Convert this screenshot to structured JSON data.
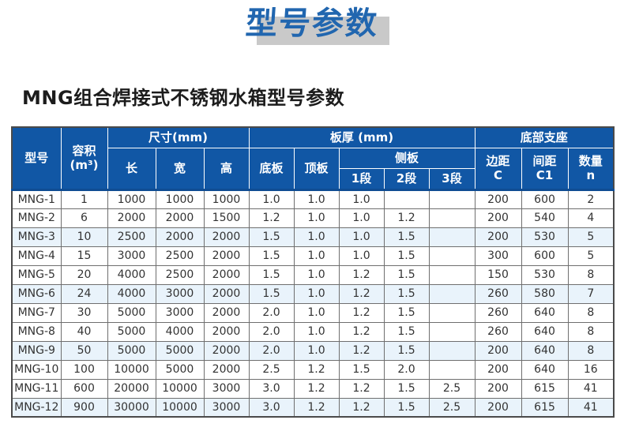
{
  "page": {
    "title": "型号参数",
    "subtitle": "MNG组合焊接式不锈钢水箱型号参数"
  },
  "colors": {
    "title_blue": "#2166af",
    "title_shadow_gray": "#c9c9c9",
    "header_bg_blue": "#1157a5",
    "header_text": "#ffffff",
    "row_tint_blue": "#e9f3fb",
    "grid_line": "#6f6f6f",
    "body_text": "#333333"
  },
  "table": {
    "header": {
      "model": "型号",
      "volume_line1": "容积",
      "volume_line2": "(m³)",
      "size_group": "尺寸(mm)",
      "length": "长",
      "width": "宽",
      "height": "高",
      "thickness_group": "板厚 (mm)",
      "bottom_plate": "底板",
      "top_plate": "顶板",
      "side_plate_group": "侧板",
      "side_seg1": "1段",
      "side_seg2": "2段",
      "side_seg3": "3段",
      "support_group": "底部支座",
      "edge_line1": "边距",
      "edge_line2": "C",
      "spacing_line1": "间距",
      "spacing_line2": "C1",
      "qty_line1": "数量",
      "qty_line2": "n"
    },
    "columns": [
      "model",
      "volume",
      "length",
      "width",
      "height",
      "bottom_plate",
      "top_plate",
      "side_seg1",
      "side_seg2",
      "side_seg3",
      "edge_c",
      "spacing_c1",
      "qty_n"
    ],
    "rows": [
      {
        "model": "MNG-1",
        "volume": "1",
        "length": "1000",
        "width": "1000",
        "height": "1000",
        "bottom_plate": "1.0",
        "top_plate": "1.0",
        "side_seg1": "1.0",
        "side_seg2": "",
        "side_seg3": "",
        "edge_c": "200",
        "spacing_c1": "600",
        "qty_n": "2"
      },
      {
        "model": "MNG-2",
        "volume": "6",
        "length": "2000",
        "width": "2000",
        "height": "1500",
        "bottom_plate": "1.2",
        "top_plate": "1.0",
        "side_seg1": "1.0",
        "side_seg2": "1.2",
        "side_seg3": "",
        "edge_c": "200",
        "spacing_c1": "540",
        "qty_n": "4"
      },
      {
        "model": "MNG-3",
        "volume": "10",
        "length": "2500",
        "width": "2000",
        "height": "2000",
        "bottom_plate": "1.5",
        "top_plate": "1.0",
        "side_seg1": "1.0",
        "side_seg2": "1.5",
        "side_seg3": "",
        "edge_c": "200",
        "spacing_c1": "530",
        "qty_n": "5"
      },
      {
        "model": "MNG-4",
        "volume": "15",
        "length": "3000",
        "width": "2500",
        "height": "2000",
        "bottom_plate": "1.5",
        "top_plate": "1.0",
        "side_seg1": "1.0",
        "side_seg2": "1.5",
        "side_seg3": "",
        "edge_c": "300",
        "spacing_c1": "600",
        "qty_n": "5"
      },
      {
        "model": "MNG-5",
        "volume": "20",
        "length": "4000",
        "width": "2500",
        "height": "2000",
        "bottom_plate": "1.5",
        "top_plate": "1.0",
        "side_seg1": "1.2",
        "side_seg2": "1.5",
        "side_seg3": "",
        "edge_c": "150",
        "spacing_c1": "530",
        "qty_n": "8"
      },
      {
        "model": "MNG-6",
        "volume": "24",
        "length": "4000",
        "width": "3000",
        "height": "2000",
        "bottom_plate": "1.5",
        "top_plate": "1.0",
        "side_seg1": "1.2",
        "side_seg2": "1.5",
        "side_seg3": "",
        "edge_c": "260",
        "spacing_c1": "580",
        "qty_n": "7"
      },
      {
        "model": "MNG-7",
        "volume": "30",
        "length": "5000",
        "width": "3000",
        "height": "2000",
        "bottom_plate": "2.0",
        "top_plate": "1.0",
        "side_seg1": "1.2",
        "side_seg2": "1.5",
        "side_seg3": "",
        "edge_c": "260",
        "spacing_c1": "640",
        "qty_n": "8"
      },
      {
        "model": "MNG-8",
        "volume": "40",
        "length": "5000",
        "width": "4000",
        "height": "2000",
        "bottom_plate": "2.0",
        "top_plate": "1.0",
        "side_seg1": "1.2",
        "side_seg2": "1.5",
        "side_seg3": "",
        "edge_c": "260",
        "spacing_c1": "640",
        "qty_n": "8"
      },
      {
        "model": "MNG-9",
        "volume": "50",
        "length": "5000",
        "width": "5000",
        "height": "2000",
        "bottom_plate": "2.0",
        "top_plate": "1.0",
        "side_seg1": "1.2",
        "side_seg2": "1.5",
        "side_seg3": "",
        "edge_c": "200",
        "spacing_c1": "640",
        "qty_n": "8"
      },
      {
        "model": "MNG-10",
        "volume": "100",
        "length": "10000",
        "width": "5000",
        "height": "2000",
        "bottom_plate": "2.5",
        "top_plate": "1.2",
        "side_seg1": "1.5",
        "side_seg2": "2.0",
        "side_seg3": "",
        "edge_c": "200",
        "spacing_c1": "640",
        "qty_n": "16"
      },
      {
        "model": "MNG-11",
        "volume": "600",
        "length": "20000",
        "width": "10000",
        "height": "3000",
        "bottom_plate": "3.0",
        "top_plate": "1.2",
        "side_seg1": "1.2",
        "side_seg2": "1.5",
        "side_seg3": "2.5",
        "edge_c": "200",
        "spacing_c1": "615",
        "qty_n": "41"
      },
      {
        "model": "MNG-12",
        "volume": "900",
        "length": "30000",
        "width": "10000",
        "height": "3000",
        "bottom_plate": "3.0",
        "top_plate": "1.2",
        "side_seg1": "1.2",
        "side_seg2": "1.5",
        "side_seg3": "2.5",
        "edge_c": "200",
        "spacing_c1": "615",
        "qty_n": "41"
      }
    ]
  }
}
